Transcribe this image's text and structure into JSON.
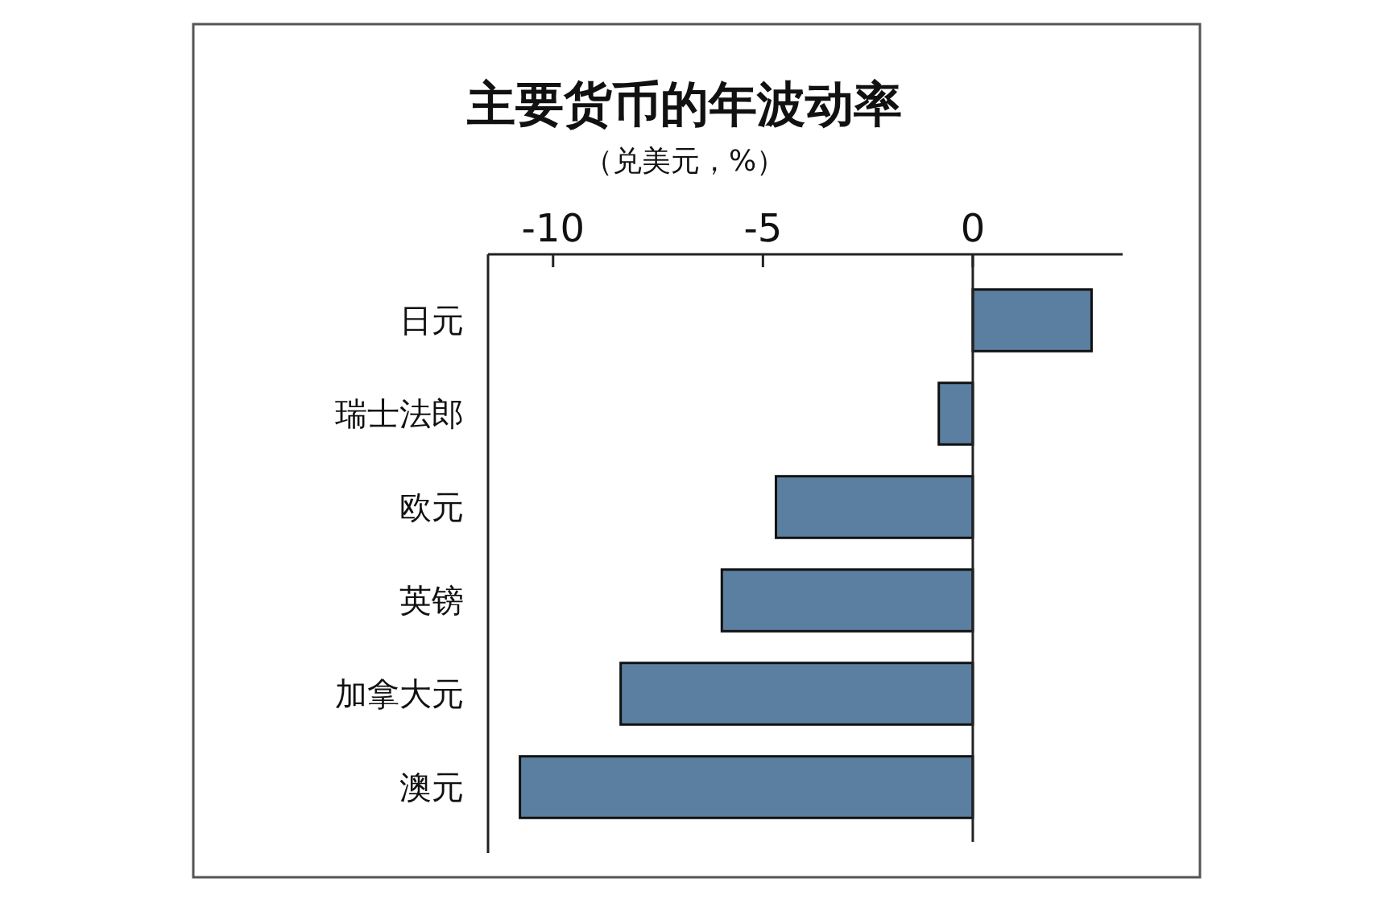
{
  "chart_data": {
    "type": "bar",
    "orientation": "horizontal",
    "title": "主要货币的年波动率",
    "subtitle": "（兑美元，%）",
    "categories": [
      "日元",
      "瑞士法郎",
      "欧元",
      "英镑",
      "加拿大元",
      "澳元"
    ],
    "values": [
      2.83,
      -0.81,
      -4.69,
      -5.98,
      -8.39,
      -10.79
    ],
    "color": "#5b7fa0",
    "xlim": [
      -11.55,
      3.57
    ],
    "xticks": [
      -10,
      -5,
      0
    ]
  }
}
